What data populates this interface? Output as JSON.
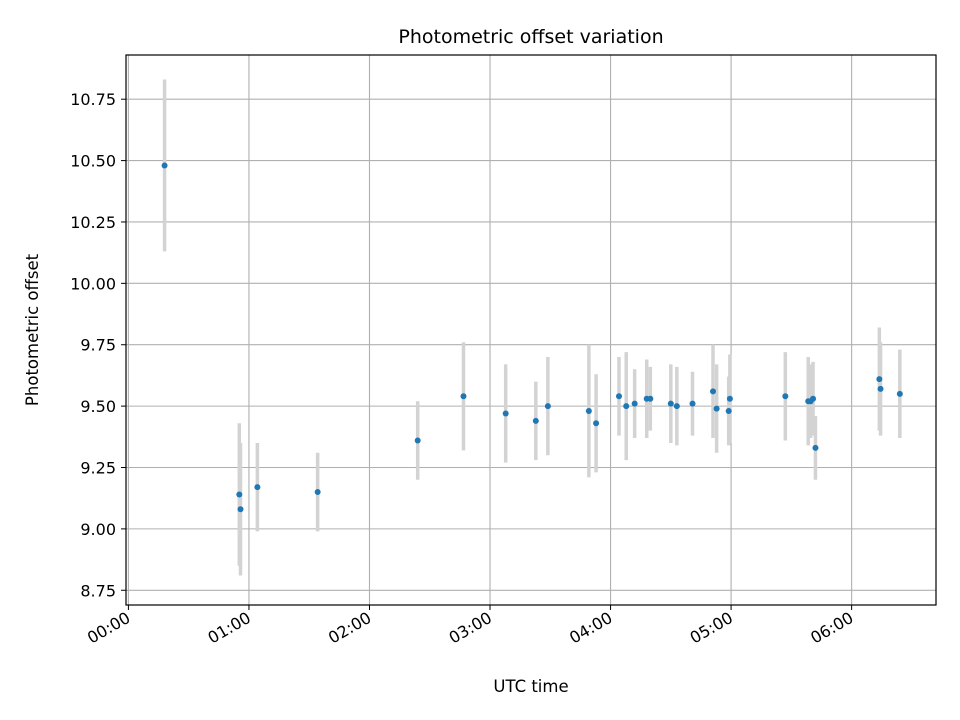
{
  "chart_data": {
    "type": "scatter",
    "title": "Photometric offset variation",
    "xlabel": "UTC time",
    "ylabel": "Photometric offset",
    "x_unit": "hours",
    "xlim": [
      -0.02,
      6.7
    ],
    "ylim": [
      8.69,
      10.93
    ],
    "grid": true,
    "legend": "none",
    "colors": {
      "point": "#1f77b4",
      "errorbar": "#d3d3d3",
      "grid": "#b0b0b0"
    },
    "xticks": [
      {
        "value": 0,
        "label": "00:00"
      },
      {
        "value": 1,
        "label": "01:00"
      },
      {
        "value": 2,
        "label": "02:00"
      },
      {
        "value": 3,
        "label": "03:00"
      },
      {
        "value": 4,
        "label": "04:00"
      },
      {
        "value": 5,
        "label": "05:00"
      },
      {
        "value": 6,
        "label": "06:00"
      }
    ],
    "yticks": [
      {
        "value": 8.75,
        "label": "8.75"
      },
      {
        "value": 9.0,
        "label": "9.00"
      },
      {
        "value": 9.25,
        "label": "9.25"
      },
      {
        "value": 9.5,
        "label": "9.50"
      },
      {
        "value": 9.75,
        "label": "9.75"
      },
      {
        "value": 10.0,
        "label": "10.00"
      },
      {
        "value": 10.25,
        "label": "10.25"
      },
      {
        "value": 10.5,
        "label": "10.50"
      },
      {
        "value": 10.75,
        "label": "10.75"
      }
    ],
    "series": [
      {
        "name": "offset",
        "points": [
          {
            "x": 0.3,
            "y": 10.48,
            "err": 0.35
          },
          {
            "x": 0.92,
            "y": 9.14,
            "err": 0.29
          },
          {
            "x": 0.93,
            "y": 9.08,
            "err": 0.27
          },
          {
            "x": 1.07,
            "y": 9.17,
            "err": 0.18
          },
          {
            "x": 1.57,
            "y": 9.15,
            "err": 0.16
          },
          {
            "x": 2.4,
            "y": 9.36,
            "err": 0.16
          },
          {
            "x": 2.78,
            "y": 9.54,
            "err": 0.22
          },
          {
            "x": 3.13,
            "y": 9.47,
            "err": 0.2
          },
          {
            "x": 3.38,
            "y": 9.44,
            "err": 0.16
          },
          {
            "x": 3.48,
            "y": 9.5,
            "err": 0.2
          },
          {
            "x": 3.82,
            "y": 9.48,
            "err": 0.27
          },
          {
            "x": 3.88,
            "y": 9.43,
            "err": 0.2
          },
          {
            "x": 4.07,
            "y": 9.54,
            "err": 0.16
          },
          {
            "x": 4.13,
            "y": 9.5,
            "err": 0.22
          },
          {
            "x": 4.2,
            "y": 9.51,
            "err": 0.14
          },
          {
            "x": 4.3,
            "y": 9.53,
            "err": 0.16
          },
          {
            "x": 4.33,
            "y": 9.53,
            "err": 0.13
          },
          {
            "x": 4.5,
            "y": 9.51,
            "err": 0.16
          },
          {
            "x": 4.55,
            "y": 9.5,
            "err": 0.16
          },
          {
            "x": 4.68,
            "y": 9.51,
            "err": 0.13
          },
          {
            "x": 4.85,
            "y": 9.56,
            "err": 0.19
          },
          {
            "x": 4.88,
            "y": 9.49,
            "err": 0.18
          },
          {
            "x": 4.98,
            "y": 9.48,
            "err": 0.14
          },
          {
            "x": 4.99,
            "y": 9.53,
            "err": 0.18
          },
          {
            "x": 5.45,
            "y": 9.54,
            "err": 0.18
          },
          {
            "x": 5.64,
            "y": 9.52,
            "err": 0.18
          },
          {
            "x": 5.66,
            "y": 9.52,
            "err": 0.15
          },
          {
            "x": 5.68,
            "y": 9.53,
            "err": 0.15
          },
          {
            "x": 5.7,
            "y": 9.33,
            "err": 0.13
          },
          {
            "x": 6.23,
            "y": 9.61,
            "err": 0.21
          },
          {
            "x": 6.24,
            "y": 9.57,
            "err": 0.19
          },
          {
            "x": 6.4,
            "y": 9.55,
            "err": 0.18
          }
        ]
      }
    ]
  }
}
